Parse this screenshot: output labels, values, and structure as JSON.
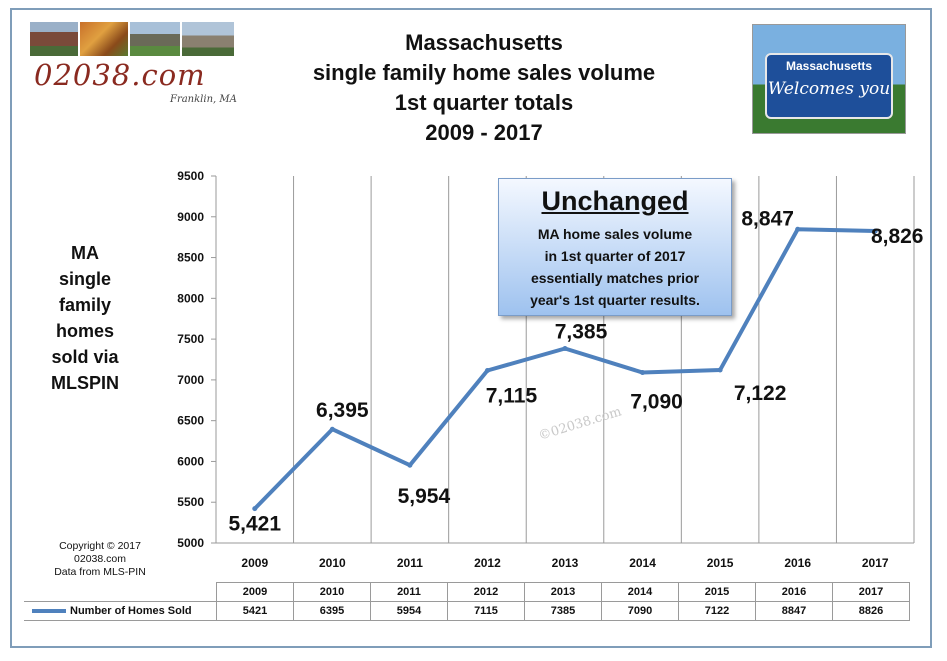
{
  "header": {
    "site_name": "02038.com",
    "town": "Franklin, MA",
    "title_lines": [
      "Massachusetts",
      "single family home sales volume",
      "1st quarter totals",
      "2009 - 2017"
    ]
  },
  "sign": {
    "state": "Massachusetts",
    "welcome": "Welcomes you"
  },
  "y_axis_title_lines": [
    "MA",
    "single",
    "family",
    "homes",
    "sold via",
    "MLSPIN"
  ],
  "callout": {
    "title": "Unchanged",
    "text": "MA home sales volume\nin 1st quarter of 2017\nessentially matches prior\nyear's 1st quarter results."
  },
  "watermark": "©02038.com",
  "copyright": [
    "Copyright © 2017",
    "02038.com",
    "Data from MLS-PIN"
  ],
  "colors": {
    "line": "#4f81bd",
    "frame": "#7f9db9",
    "callout_fill": "#9ec2ef"
  },
  "chart_data": {
    "type": "line",
    "categories": [
      "2009",
      "2010",
      "2011",
      "2012",
      "2013",
      "2014",
      "2015",
      "2016",
      "2017"
    ],
    "series": [
      {
        "name": "Number of Homes Sold",
        "values": [
          5421,
          6395,
          5954,
          7115,
          7385,
          7090,
          7122,
          8847,
          8826
        ],
        "labels": [
          "5,421",
          "6,395",
          "5,954",
          "7,115",
          "7,385",
          "7,090",
          "7,122",
          "8,847",
          "8,826"
        ]
      }
    ],
    "ylim": [
      5000,
      9500
    ],
    "y_ticks": [
      5000,
      5500,
      6000,
      6500,
      7000,
      7500,
      8000,
      8500,
      9000,
      9500
    ],
    "grid": "vertical",
    "legend": "data table below chart"
  },
  "table": {
    "legend_label": "Number of Homes Sold",
    "years": [
      "2009",
      "2010",
      "2011",
      "2012",
      "2013",
      "2014",
      "2015",
      "2016",
      "2017"
    ],
    "values": [
      "5421",
      "6395",
      "5954",
      "7115",
      "7385",
      "7090",
      "7122",
      "8847",
      "8826"
    ]
  }
}
